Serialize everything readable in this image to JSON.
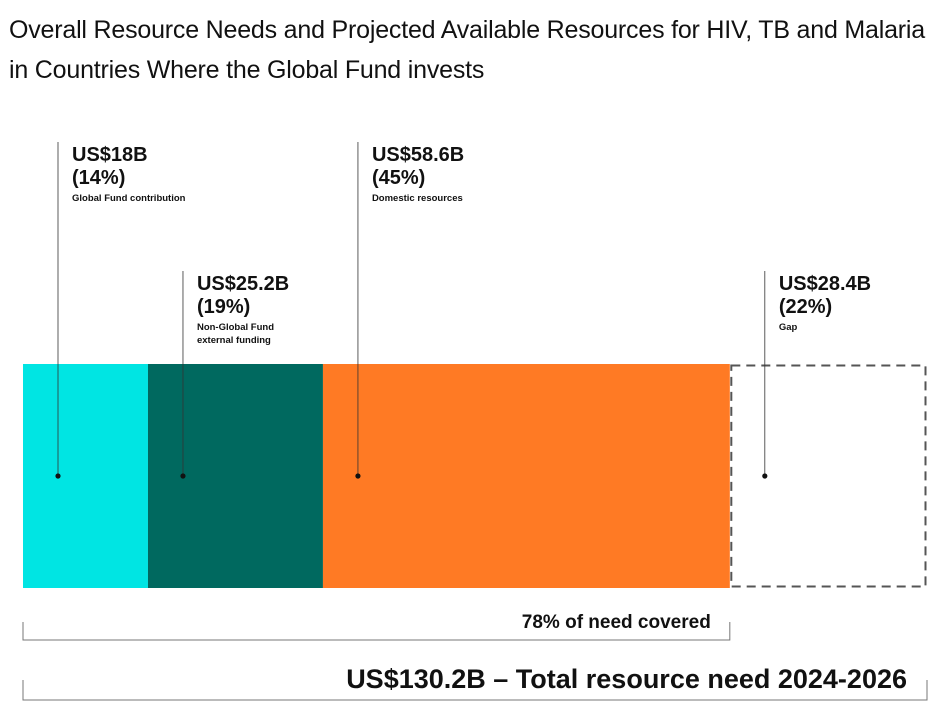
{
  "title": "Overall Resource Needs and Projected Available Resources for HIV, TB and Malaria in Countries Where the Global Fund invests",
  "chart_data": {
    "type": "bar",
    "orientation": "horizontal-stacked-100",
    "total": {
      "value": 130.2,
      "label": "US$130.2B – Total resource need 2024-2026"
    },
    "covered": {
      "percent": 78,
      "label": "78% of need covered"
    },
    "segments": [
      {
        "name": "Global Fund contribution",
        "value": 18,
        "value_label": "US$18B",
        "percent_label": "(14%)",
        "label_lines": [
          "Global Fund contribution"
        ],
        "color": "#00e5e3",
        "style": "solid"
      },
      {
        "name": "Non-Global Fund external funding",
        "value": 25.2,
        "value_label": "US$25.2B",
        "percent_label": "(19%)",
        "label_lines": [
          "Non-Global Fund",
          "external funding"
        ],
        "color": "#00695f",
        "style": "solid"
      },
      {
        "name": "Domestic resources",
        "value": 58.6,
        "value_label": "US$58.6B",
        "percent_label": "(45%)",
        "label_lines": [
          "Domestic resources"
        ],
        "color": "#ff7a24",
        "style": "solid"
      },
      {
        "name": "Gap",
        "value": 28.4,
        "value_label": "US$28.4B",
        "percent_label": "(22%)",
        "label_lines": [
          "Gap"
        ],
        "color": "#555555",
        "style": "dashed"
      }
    ]
  }
}
